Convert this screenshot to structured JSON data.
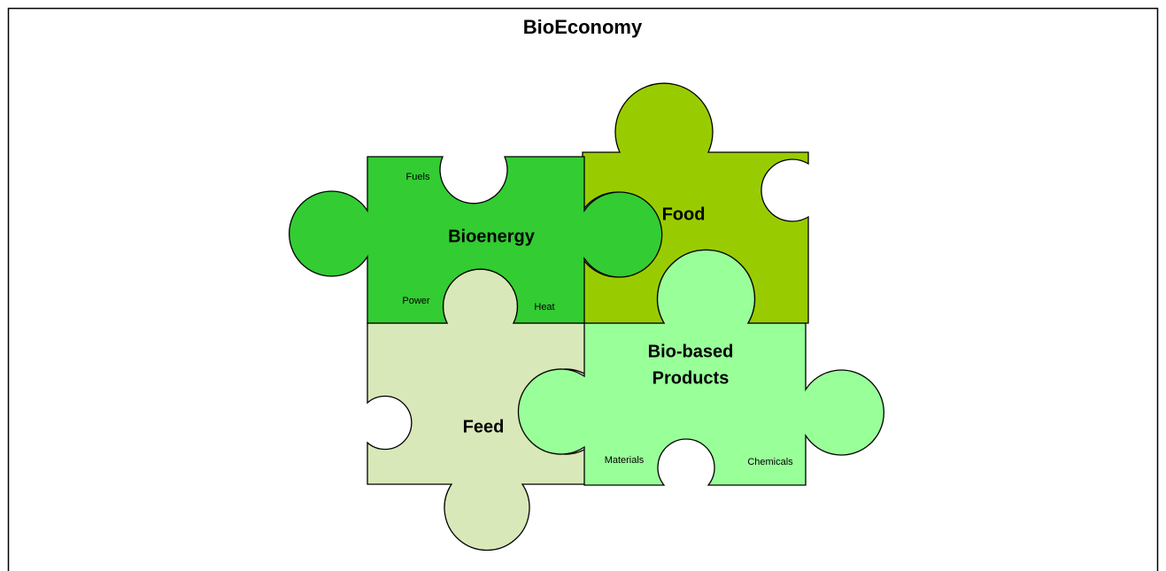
{
  "title": "BioEconomy",
  "pieces": [
    {
      "label": "Bioenergy",
      "parts": [
        "Fuels",
        "Power",
        "Heat"
      ]
    },
    {
      "label": "Food"
    },
    {
      "label": "Feed"
    },
    {
      "label_lines": [
        "Bio-based",
        "Products"
      ],
      "parts": [
        "Materials",
        "Chemicals"
      ]
    }
  ]
}
